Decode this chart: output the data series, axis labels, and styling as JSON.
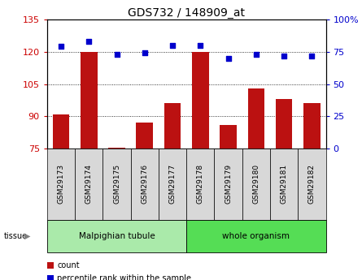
{
  "title": "GDS732 / 148909_at",
  "samples": [
    "GSM29173",
    "GSM29174",
    "GSM29175",
    "GSM29176",
    "GSM29177",
    "GSM29178",
    "GSM29179",
    "GSM29180",
    "GSM29181",
    "GSM29182"
  ],
  "count_values": [
    91,
    120,
    75.5,
    87,
    96,
    120,
    86,
    103,
    98,
    96
  ],
  "percentile_values": [
    79,
    83,
    73,
    74,
    80,
    80,
    70,
    73,
    72,
    72
  ],
  "ylim_left": [
    75,
    135
  ],
  "ylim_right": [
    0,
    100
  ],
  "yticks_left": [
    75,
    90,
    105,
    120,
    135
  ],
  "yticks_right": [
    0,
    25,
    50,
    75,
    100
  ],
  "bar_color": "#bb1111",
  "dot_color": "#0000cc",
  "sample_box_color": "#d8d8d8",
  "tissue_groups": [
    {
      "label": "Malpighian tubule",
      "start": 0,
      "end": 5,
      "color": "#aaeaaa"
    },
    {
      "label": "whole organism",
      "start": 5,
      "end": 10,
      "color": "#55dd55"
    }
  ],
  "legend_items": [
    {
      "label": "count",
      "color": "#bb1111"
    },
    {
      "label": "percentile rank within the sample",
      "color": "#0000cc"
    }
  ],
  "background_color": "#ffffff",
  "tick_label_color_left": "#cc0000",
  "tick_label_color_right": "#0000cc",
  "plot_bg_color": "#ffffff"
}
